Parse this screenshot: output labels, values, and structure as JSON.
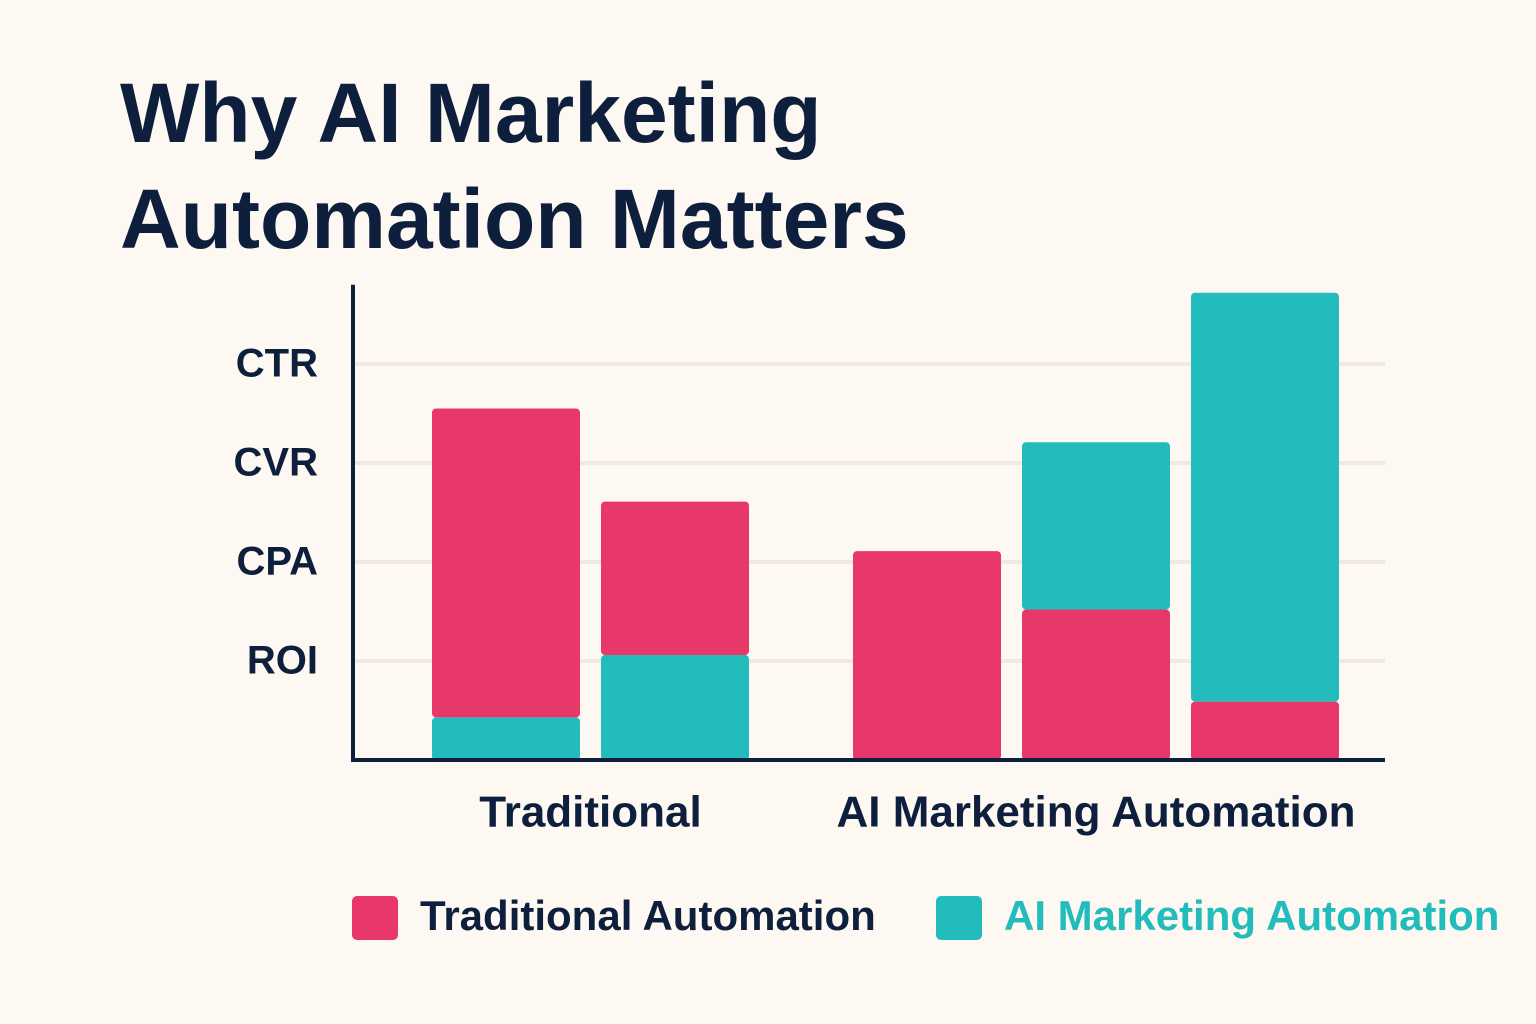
{
  "chart_data": {
    "type": "stacked-bar",
    "title": "Why AI Marketing Automation Matters",
    "categories": [
      null,
      null,
      null,
      null,
      null
    ],
    "groups": [
      {
        "label": "Traditional",
        "size": 2
      },
      {
        "label": "AI Marketing Automation",
        "size": 3
      }
    ],
    "series": [
      {
        "name": "Traditional Automation",
        "color": "#e8386a",
        "label_color": "#0d1f3c",
        "values": [
          3.12,
          1.55,
          2.11,
          1.52,
          0.59
        ]
      },
      {
        "name": "AI Marketing Automation",
        "color": "#21bcbb",
        "label_color": "#21bcbb",
        "values": [
          0.43,
          1.06,
          null,
          1.69,
          4.13
        ]
      }
    ],
    "bottom_series": [
      1,
      1,
      0,
      0,
      0
    ],
    "ylim": [
      0,
      4.8
    ],
    "yticks": [
      {
        "value": 1,
        "label": "ROI"
      },
      {
        "value": 2,
        "label": "CPA"
      },
      {
        "value": 3,
        "label": "CVR"
      },
      {
        "value": 4,
        "label": "CTR"
      }
    ],
    "grid": true
  }
}
